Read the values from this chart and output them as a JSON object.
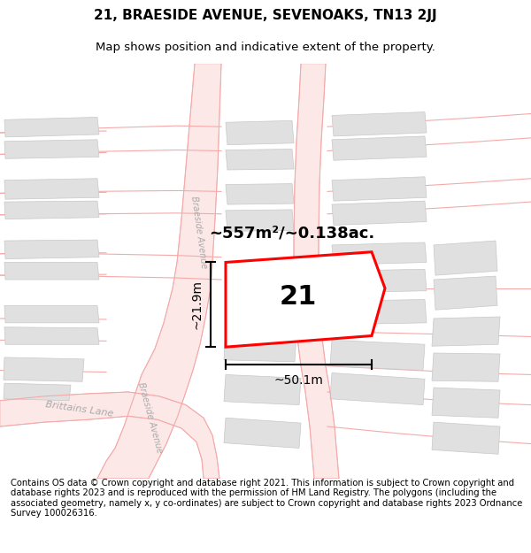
{
  "title": "21, BRAESIDE AVENUE, SEVENOAKS, TN13 2JJ",
  "subtitle": "Map shows position and indicative extent of the property.",
  "footer": "Contains OS data © Crown copyright and database right 2021. This information is subject to Crown copyright and database rights 2023 and is reproduced with the permission of HM Land Registry. The polygons (including the associated geometry, namely x, y co-ordinates) are subject to Crown copyright and database rights 2023 Ordnance Survey 100026316.",
  "title_fontsize": 11,
  "subtitle_fontsize": 9.5,
  "footer_fontsize": 7.2,
  "map_bg": "#ffffff",
  "road_line_color": "#f5aaaa",
  "road_fill_color": "#fde8e8",
  "block_color": "#e0e0e0",
  "block_edge_color": "#c8c8c8",
  "plot_color": "#ff0000",
  "area_label": "~557m²/~0.138ac.",
  "width_label": "~50.1m",
  "height_label": "~21.9m",
  "number_label": "21",
  "road_label_color": "#aaaaaa",
  "road_label_1": "Braeside Avenue",
  "road_label_2": "Braeside Avenue",
  "brittains_label": "Brittains Lane"
}
